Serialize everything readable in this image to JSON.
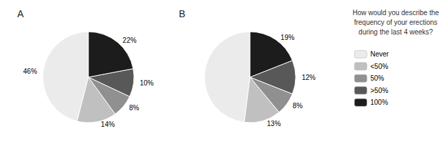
{
  "chart_data": {
    "type": "pie",
    "categories": [
      "Never",
      "<50%",
      "50%",
      ">50%",
      "100%"
    ],
    "colors": [
      "#ebebeb",
      "#c0c0c0",
      "#909090",
      "#585858",
      "#1c1c1c"
    ],
    "series": [
      {
        "name": "A",
        "values": [
          46,
          14,
          8,
          10,
          22
        ],
        "value_labels": [
          "46%",
          "14%",
          "8%",
          "10%",
          "22%"
        ]
      },
      {
        "name": "B",
        "values": [
          48,
          13,
          8,
          12,
          19
        ],
        "value_labels": [
          null,
          "13%",
          "8%",
          "12%",
          "19%"
        ]
      }
    ],
    "data_labels": true,
    "annotation": "How would you describe the\nfrequency of your erections\nduring the last 4 weeks?",
    "legend": "right"
  }
}
